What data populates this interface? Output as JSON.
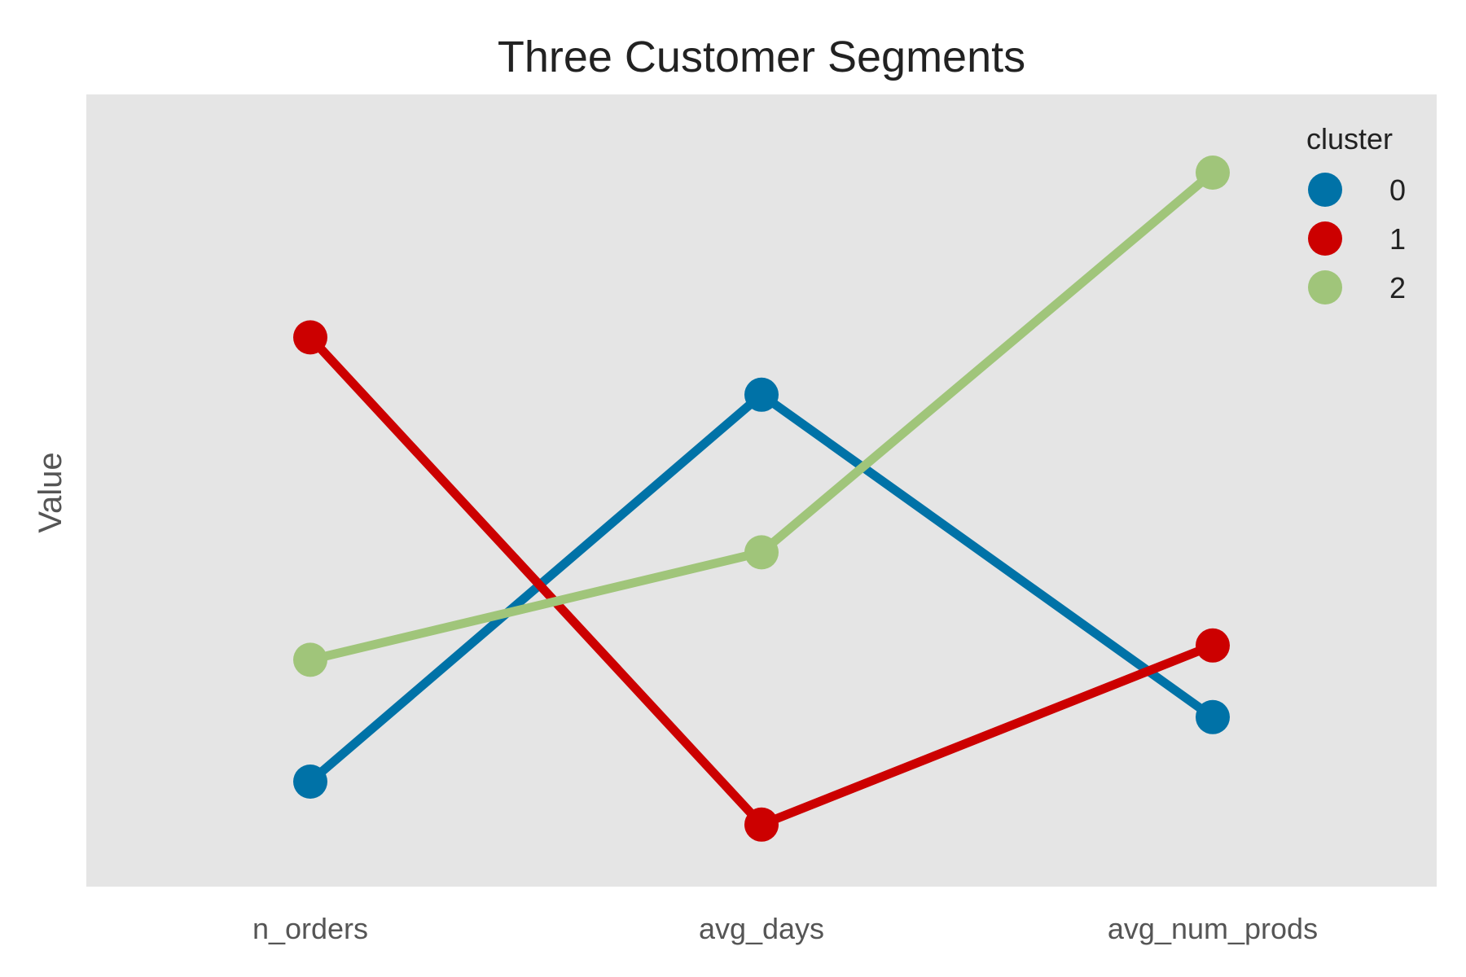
{
  "chart_data": {
    "type": "line",
    "title": "Three Customer Segments",
    "xlabel": "",
    "ylabel": "Value",
    "categories": [
      "n_orders",
      "avg_days",
      "avg_num_prods"
    ],
    "ylim": [
      0,
      1
    ],
    "grid": false,
    "y_ticks_shown": false,
    "legend": {
      "title": "cluster",
      "placement": "top-right"
    },
    "series": [
      {
        "name": "0",
        "color": "#0072a7",
        "values": [
          0.1,
          0.64,
          0.19
        ]
      },
      {
        "name": "1",
        "color": "#cc0000",
        "values": [
          0.72,
          0.04,
          0.29
        ]
      },
      {
        "name": "2",
        "color": "#a0c57a",
        "values": [
          0.27,
          0.42,
          0.95
        ]
      }
    ],
    "background_color": "#e5e5e5"
  }
}
